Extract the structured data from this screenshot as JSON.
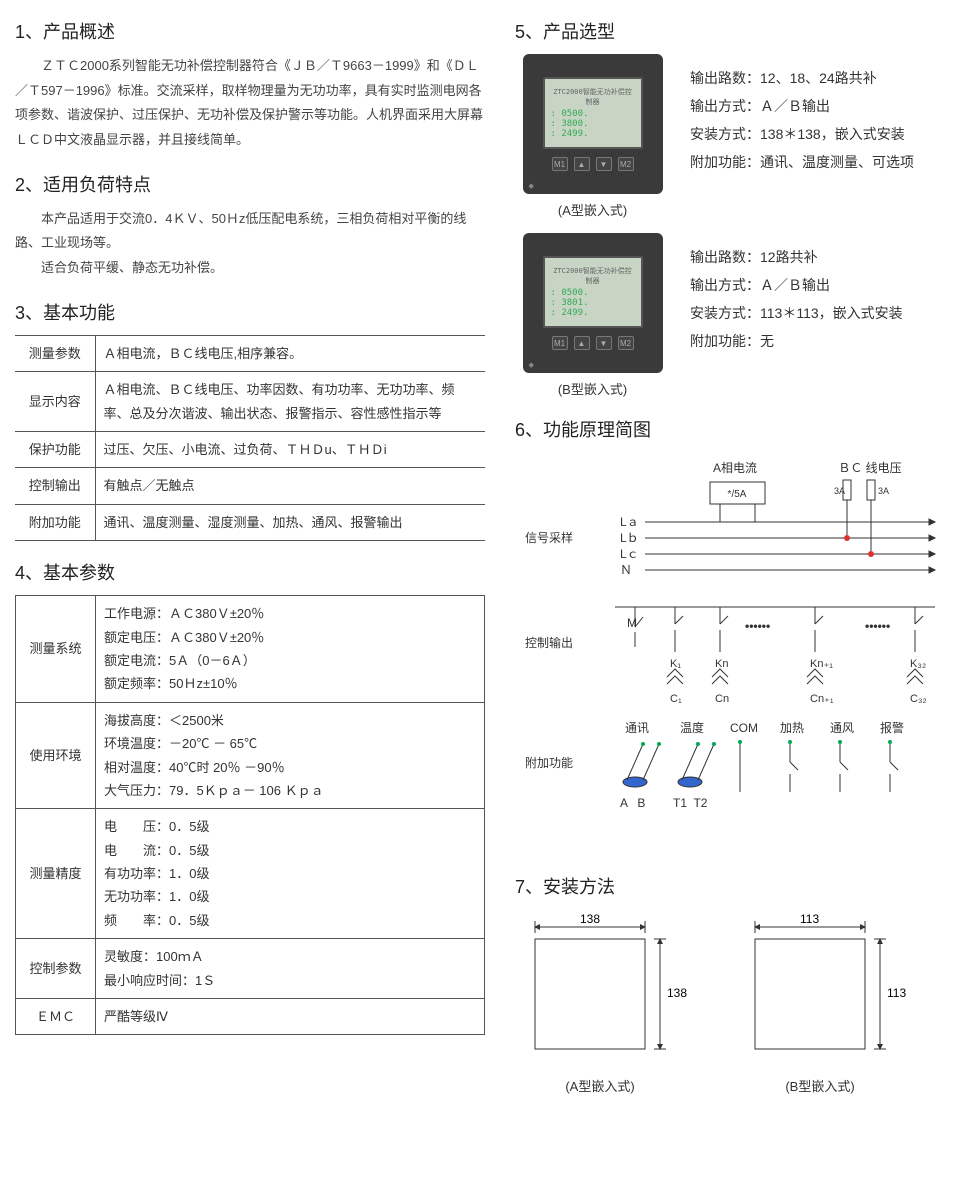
{
  "s1": {
    "title": "1、产品概述",
    "body": "　　ＺＴＣ2000系列智能无功补偿控制器符合《ＪＢ／Ｔ9663－1999》和《ＤＬ／Ｔ597－1996》标准。交流采样，取样物理量为无功功率，具有实时监测电网各项参数、谐波保护、过压保护、无功补偿及保护警示等功能。人机界面采用大屏幕ＬＣＤ中文液晶显示器，并且接线简单。"
  },
  "s2": {
    "title": "2、适用负荷特点",
    "p1": "本产品适用于交流0．4ＫＶ、50Ｈz低压配电系统，三相负荷相对平衡的线路、工业现场等。",
    "p2": "适合负荷平缓、静态无功补偿。"
  },
  "s3": {
    "title": "3、基本功能",
    "rows": [
      [
        "测量参数",
        "Ａ相电流，ＢＣ线电压,相序兼容。"
      ],
      [
        "显示内容",
        "Ａ相电流、ＢＣ线电压、功率因数、有功功率、无功功率、频率、总及分次谐波、输出状态、报警指示、容性感性指示等"
      ],
      [
        "保护功能",
        "过压、欠压、小电流、过负荷、ＴＨＤu、ＴＨＤi"
      ],
      [
        "控制输出",
        "有触点／无触点"
      ],
      [
        "附加功能",
        "通讯、温度测量、湿度测量、加热、通风、报警输出"
      ]
    ]
  },
  "s4": {
    "title": "4、基本参数",
    "rows": [
      [
        "测量系统",
        "工作电源：ＡＣ380Ｖ±20％\n额定电压：ＡＣ380Ｖ±20％\n额定电流：5Ａ（0－6Ａ）\n额定频率：50Ｈz±10％"
      ],
      [
        "使用环境",
        "海拔高度：＜2500米\n环境温度：－20℃ － 65℃\n相对温度：40℃时 20％ －90％\n大气压力：79．5Ｋｐａ－ 106 Ｋｐａ"
      ],
      [
        "测量精度",
        "电　　压：0．5级\n电　　流：0．5级\n有功功率：1．0级\n无功功率：1．0级\n频　　率：0．5级"
      ],
      [
        "控制参数",
        "灵敏度：100ｍＡ\n最小响应时间：1Ｓ"
      ],
      [
        "ＥＭＣ",
        "严酷等级Ⅳ"
      ]
    ]
  },
  "s5": {
    "title": "5、产品选型",
    "models": [
      {
        "caption": "(A型嵌入式)",
        "specs": [
          "输出路数：12、18、24路共补",
          "输出方式：Ａ／Ｂ输出",
          "安装方式：138＊138，嵌入式安装",
          "附加功能：通讯、温度测量、可选项"
        ],
        "screen": [
          "0500",
          "3800",
          "2499"
        ]
      },
      {
        "caption": "(B型嵌入式)",
        "specs": [
          "输出路数：12路共补",
          "输出方式：Ａ／Ｂ输出",
          "安装方式：113＊113，嵌入式安装",
          "附加功能：无"
        ],
        "screen": [
          "0500",
          "3801",
          "2499"
        ]
      }
    ]
  },
  "s6": {
    "title": "6、功能原理简图",
    "labels": {
      "sig": "信号采样",
      "ctrl": "控制输出",
      "addon": "附加功能",
      "acur": "A相电流",
      "bcv": "ＢＣ 线电压",
      "ratio": "*/5A",
      "fuse": "3A",
      "La": "Lａ",
      "Lb": "Lｂ",
      "Lc": "Lｃ",
      "N": "Ｎ",
      "M": "M",
      "K1": "K₁",
      "Kn": "Kn",
      "Kn1": "Kn₊₁",
      "K32": "K₃₂",
      "C1": "C₁",
      "Cn": "Cn",
      "Cn1": "Cn₊₁",
      "C32": "C₃₂",
      "comm": "通讯",
      "temp": "温度",
      "com": "COM",
      "heat": "加热",
      "fan": "通风",
      "alarm": "报警",
      "AB": "A   B",
      "T12": "T1  T2"
    }
  },
  "s7": {
    "title": "7、安装方法",
    "dims": [
      {
        "w": "138",
        "h": "138",
        "cap": "(A型嵌入式)"
      },
      {
        "w": "113",
        "h": "113",
        "cap": "(B型嵌入式)"
      }
    ]
  }
}
